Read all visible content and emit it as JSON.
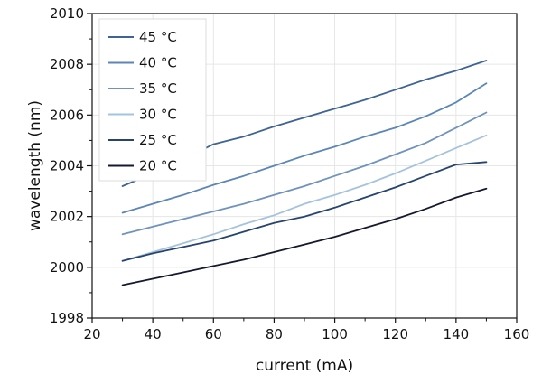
{
  "chart_data": {
    "type": "line",
    "title": "",
    "xlabel": "current (mA)",
    "ylabel": "wavelength (nm)",
    "xlim": [
      20,
      160
    ],
    "ylim": [
      1998,
      2010
    ],
    "xticks": [
      20,
      40,
      60,
      80,
      100,
      120,
      140,
      160
    ],
    "yticks": [
      1998,
      2000,
      2002,
      2004,
      2006,
      2008,
      2010
    ],
    "grid": true,
    "legend_position": "top-left",
    "x": [
      30,
      40,
      50,
      60,
      70,
      80,
      90,
      100,
      110,
      120,
      130,
      140,
      150
    ],
    "series": [
      {
        "name": "45 °C",
        "color": "#3F6394",
        "values": [
          2003.2,
          2003.7,
          2004.25,
          2004.85,
          2005.15,
          2005.55,
          2005.9,
          2006.25,
          2006.6,
          2007.0,
          2007.4,
          2007.75,
          2008.15
        ]
      },
      {
        "name": "40 °C",
        "color": "#5B86B6",
        "values": [
          2002.15,
          2002.5,
          2002.85,
          2003.25,
          2003.6,
          2004.0,
          2004.4,
          2004.75,
          2005.15,
          2005.5,
          2005.95,
          2006.5,
          2007.25
        ]
      },
      {
        "name": "35 °C",
        "color": "#6F93BC",
        "values": [
          2001.3,
          2001.6,
          2001.9,
          2002.2,
          2002.5,
          2002.85,
          2003.2,
          2003.6,
          2004.0,
          2004.45,
          2004.9,
          2005.5,
          2006.1
        ]
      },
      {
        "name": "30 °C",
        "color": "#A6C3DE",
        "values": [
          2000.25,
          2000.6,
          2000.95,
          2001.3,
          2001.7,
          2002.05,
          2002.5,
          2002.85,
          2003.25,
          2003.7,
          2004.2,
          2004.7,
          2005.2
        ]
      },
      {
        "name": "25 °C",
        "color": "#26446E",
        "values": [
          2000.25,
          2000.55,
          2000.8,
          2001.05,
          2001.4,
          2001.75,
          2002.0,
          2002.35,
          2002.75,
          2003.15,
          2003.6,
          2004.05,
          2004.15
        ]
      },
      {
        "name": "20 °C",
        "color": "#15192F",
        "values": [
          1999.3,
          1999.55,
          1999.8,
          2000.05,
          2000.3,
          2000.6,
          2000.9,
          2001.2,
          2001.55,
          2001.9,
          2002.3,
          2002.75,
          2003.1
        ]
      }
    ]
  }
}
